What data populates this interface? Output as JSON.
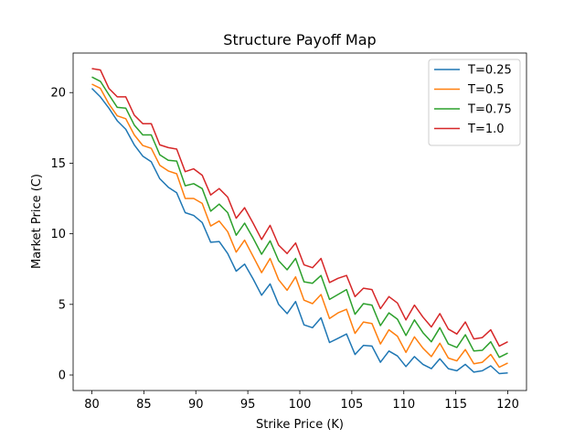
{
  "chart_data": {
    "type": "line",
    "title": "Structure Payoff Map",
    "xlabel": "Strike Price (K)",
    "ylabel": "Market Price (C)",
    "xlim": [
      78.2,
      121.8
    ],
    "ylim": [
      -1.1,
      22.8
    ],
    "xticks": [
      80,
      85,
      90,
      95,
      100,
      105,
      110,
      115,
      120
    ],
    "yticks": [
      0,
      5,
      10,
      15,
      20
    ],
    "grid": false,
    "legend_position": "top-right",
    "x": [
      80.0,
      80.816,
      81.633,
      82.449,
      83.265,
      84.082,
      84.898,
      85.714,
      86.531,
      87.347,
      88.163,
      88.98,
      89.796,
      90.612,
      91.429,
      92.245,
      93.061,
      93.878,
      94.694,
      95.51,
      96.327,
      97.143,
      97.959,
      98.776,
      99.592,
      100.408,
      101.224,
      102.041,
      102.857,
      103.673,
      104.49,
      105.306,
      106.122,
      106.939,
      107.755,
      108.571,
      109.388,
      110.204,
      111.02,
      111.837,
      112.653,
      113.469,
      114.286,
      115.102,
      115.918,
      116.735,
      117.551,
      118.367,
      119.184,
      120.0
    ],
    "series": [
      {
        "name": "T=0.25",
        "color": "#1f77b4",
        "values": [
          20.3,
          19.7,
          18.9,
          18.0,
          17.4,
          16.3,
          15.5,
          15.1,
          13.9,
          13.3,
          12.9,
          11.5,
          11.3,
          10.8,
          9.4,
          9.45,
          8.6,
          7.35,
          7.85,
          6.8,
          5.65,
          6.45,
          5.0,
          4.35,
          5.2,
          3.55,
          3.35,
          4.05,
          2.3,
          2.6,
          2.9,
          1.45,
          2.1,
          2.05,
          0.9,
          1.7,
          1.35,
          0.6,
          1.3,
          0.75,
          0.45,
          1.15,
          0.45,
          0.3,
          0.75,
          0.2,
          0.3,
          0.65,
          0.1,
          0.15
        ]
      },
      {
        "name": "T=0.5",
        "color": "#ff7f0e",
        "values": [
          20.6,
          20.3,
          19.2,
          18.35,
          18.15,
          17.0,
          16.25,
          16.05,
          14.85,
          14.45,
          14.25,
          12.5,
          12.5,
          12.15,
          10.55,
          10.9,
          10.15,
          8.7,
          9.55,
          8.4,
          7.25,
          8.25,
          6.75,
          6.0,
          6.95,
          5.3,
          5.05,
          5.7,
          4.0,
          4.4,
          4.65,
          2.95,
          3.75,
          3.65,
          2.2,
          3.2,
          2.75,
          1.6,
          2.7,
          1.9,
          1.3,
          2.25,
          1.2,
          1.0,
          1.8,
          0.8,
          0.9,
          1.45,
          0.55,
          0.85
        ]
      },
      {
        "name": "T=0.75",
        "color": "#2ca02c",
        "values": [
          21.1,
          20.8,
          19.85,
          18.95,
          18.9,
          17.7,
          17.0,
          17.0,
          15.6,
          15.2,
          15.15,
          13.4,
          13.55,
          13.2,
          11.6,
          12.1,
          11.5,
          9.9,
          10.75,
          9.7,
          8.55,
          9.5,
          8.1,
          7.45,
          8.25,
          6.6,
          6.5,
          7.05,
          5.35,
          5.7,
          6.05,
          4.3,
          5.05,
          4.95,
          3.5,
          4.4,
          3.95,
          2.8,
          3.9,
          3.0,
          2.35,
          3.35,
          2.2,
          1.95,
          2.85,
          1.7,
          1.75,
          2.35,
          1.25,
          1.55
        ]
      },
      {
        "name": "T=1.0",
        "color": "#d62728",
        "values": [
          21.7,
          21.6,
          20.3,
          19.7,
          19.7,
          18.4,
          17.8,
          17.8,
          16.3,
          16.1,
          16.0,
          14.4,
          14.6,
          14.15,
          12.75,
          13.2,
          12.6,
          11.1,
          11.85,
          10.75,
          9.6,
          10.6,
          9.2,
          8.6,
          9.35,
          7.8,
          7.6,
          8.25,
          6.55,
          6.85,
          7.05,
          5.55,
          6.15,
          6.05,
          4.7,
          5.55,
          5.1,
          3.9,
          4.95,
          4.1,
          3.4,
          4.35,
          3.25,
          2.9,
          3.75,
          2.55,
          2.65,
          3.2,
          2.05,
          2.35
        ]
      }
    ]
  }
}
